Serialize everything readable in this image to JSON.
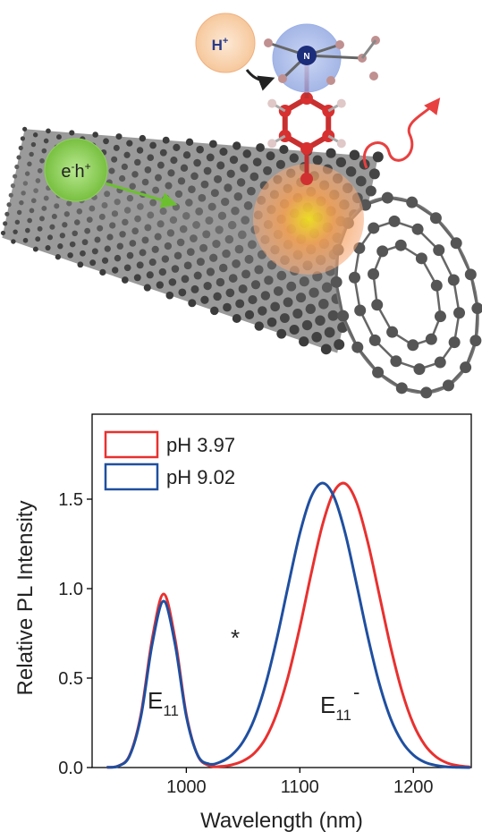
{
  "chart_data": {
    "type": "line",
    "x": [
      930,
      940,
      950,
      960,
      970,
      980,
      990,
      1000,
      1010,
      1020,
      1030,
      1040,
      1050,
      1060,
      1070,
      1080,
      1090,
      1100,
      1110,
      1120,
      1130,
      1140,
      1150,
      1160,
      1170,
      1180,
      1190,
      1200,
      1210,
      1220,
      1230,
      1240,
      1250
    ],
    "series": [
      {
        "name": "pH 3.97",
        "color": "#e8312f",
        "values": [
          0.001,
          0.009,
          0.068,
          0.297,
          0.722,
          0.97,
          0.722,
          0.297,
          0.068,
          0.011,
          0.006,
          0.015,
          0.037,
          0.081,
          0.165,
          0.308,
          0.517,
          0.785,
          1.084,
          1.358,
          1.541,
          1.587,
          1.482,
          1.256,
          0.965,
          0.673,
          0.425,
          0.243,
          0.127,
          0.06,
          0.025,
          0.01,
          0.003
        ]
      },
      {
        "name": "pH 9.02",
        "color": "#1f4fa0",
        "values": [
          0.001,
          0.008,
          0.065,
          0.285,
          0.692,
          0.93,
          0.692,
          0.286,
          0.069,
          0.02,
          0.031,
          0.07,
          0.145,
          0.273,
          0.469,
          0.728,
          1.024,
          1.309,
          1.514,
          1.59,
          1.514,
          1.309,
          1.024,
          0.728,
          0.469,
          0.273,
          0.145,
          0.07,
          0.03,
          0.012,
          0.004,
          0.001,
          0
        ]
      }
    ],
    "xlabel": "Wavelength (nm)",
    "ylabel": "Relative PL Intensity",
    "xlim": [
      917,
      1251
    ],
    "ylim": [
      0,
      1.975
    ],
    "xticks": [
      1000,
      1100,
      1200
    ],
    "yticks": [
      {
        "value": 0,
        "label": "0.0"
      },
      0.5,
      {
        "value": 1,
        "label": "1.0"
      },
      1.5
    ],
    "legend": "upper left",
    "annotations": [
      {
        "text": "E",
        "sub": "11"
      },
      {
        "text": "E",
        "sub": "11",
        "sup": "-"
      },
      {
        "text": "*"
      }
    ]
  },
  "illustration": {
    "proton": {
      "text": "H",
      "sup": "+"
    },
    "nitrogen": "N",
    "exciton": {
      "e": "e",
      "e_sup": "-",
      "h": "h",
      "h_sup": "+"
    }
  }
}
